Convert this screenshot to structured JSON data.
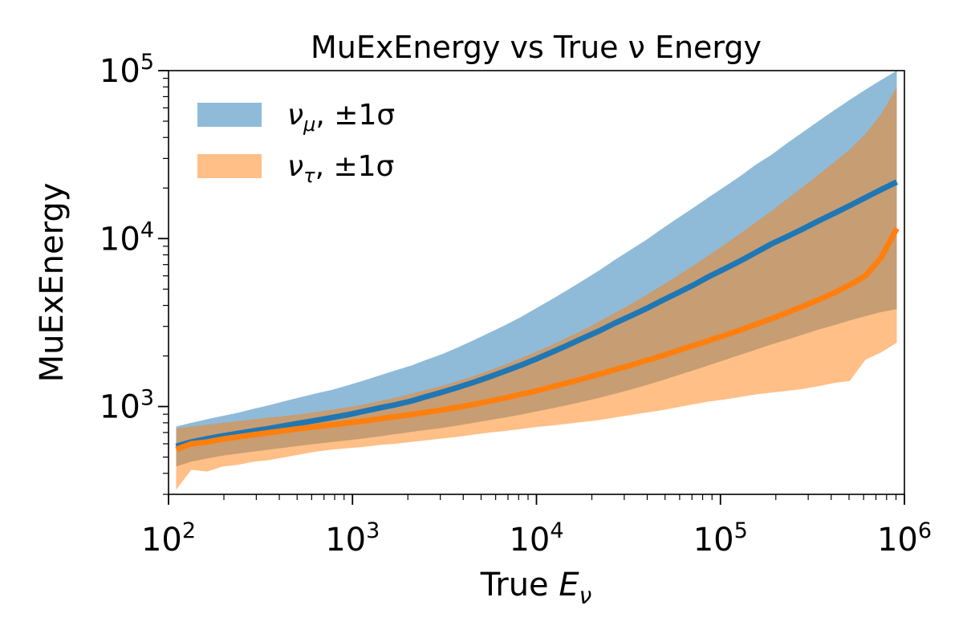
{
  "chart_data": {
    "type": "area",
    "title": "MuExEnergy vs True ν Energy",
    "xlabel": "True Eν",
    "ylabel": "MuExEnergy",
    "xscale": "log",
    "yscale": "log",
    "xlim": [
      100,
      1000000
    ],
    "ylim": [
      300,
      100000
    ],
    "x_major_ticks": [
      100,
      1000,
      10000,
      100000,
      1000000
    ],
    "x_major_tick_labels": [
      {
        "base": "10",
        "exp": "2"
      },
      {
        "base": "10",
        "exp": "3"
      },
      {
        "base": "10",
        "exp": "4"
      },
      {
        "base": "10",
        "exp": "5"
      },
      {
        "base": "10",
        "exp": "6"
      }
    ],
    "y_major_ticks": [
      1000,
      10000,
      100000
    ],
    "y_major_tick_labels": [
      {
        "base": "10",
        "exp": "3"
      },
      {
        "base": "10",
        "exp": "4"
      },
      {
        "base": "10",
        "exp": "5"
      }
    ],
    "legend_position": "top-left",
    "colors": {
      "numu_line": "#1f77b4",
      "numu_band": "#1f77b4",
      "nutau_line": "#ff7f0e",
      "nutau_band": "#ff7f0e"
    },
    "x": [
      110,
      133,
      162,
      197,
      240,
      292,
      355,
      432,
      526,
      640,
      779,
      948,
      1153,
      1403,
      1707,
      2077,
      2527,
      3075,
      3741,
      4552,
      5539,
      6739,
      8200,
      9977,
      12139,
      14770,
      17971,
      21866,
      26606,
      32372,
      39388,
      47925,
      58312,
      70950,
      86327,
      105037,
      127802,
      155502,
      189204,
      230210,
      280105,
      340813,
      414678,
      504552,
      613904,
      746957,
      908847
    ],
    "series": [
      {
        "name": "νμ, ±1σ",
        "legend": {
          "nu": "ν",
          "sub": "μ",
          "rest": ", ±1σ"
        },
        "center": [
          580,
          615,
          643,
          668,
          692,
          717,
          741,
          770,
          799,
          828,
          861,
          895,
          937,
          981,
          1024,
          1076,
          1147,
          1219,
          1300,
          1394,
          1500,
          1624,
          1759,
          1921,
          2106,
          2316,
          2558,
          2815,
          3131,
          3457,
          3822,
          4267,
          4742,
          5277,
          5931,
          6590,
          7349,
          8256,
          9287,
          10280,
          11402,
          12729,
          14130,
          15714,
          17538,
          19560,
          21712
        ],
        "upper": [
          760,
          800,
          840,
          880,
          920,
          970,
          1020,
          1080,
          1140,
          1200,
          1260,
          1340,
          1430,
          1530,
          1640,
          1750,
          1900,
          2050,
          2250,
          2480,
          2750,
          3050,
          3400,
          3850,
          4350,
          4950,
          5650,
          6450,
          7450,
          8550,
          9800,
          11400,
          13200,
          15200,
          17600,
          20300,
          23500,
          27500,
          31500,
          37000,
          43000,
          50000,
          58000,
          67000,
          77000,
          88000,
          100000
        ],
        "lower": [
          440,
          470,
          490,
          510,
          525,
          540,
          555,
          570,
          585,
          600,
          615,
          630,
          645,
          665,
          685,
          705,
          725,
          745,
          770,
          800,
          830,
          860,
          895,
          935,
          975,
          1020,
          1070,
          1125,
          1190,
          1260,
          1340,
          1430,
          1530,
          1640,
          1760,
          1890,
          2030,
          2180,
          2340,
          2500,
          2680,
          2870,
          3050,
          3250,
          3450,
          3650,
          3800
        ]
      },
      {
        "name": "ντ, ±1σ",
        "legend": {
          "nu": "ν",
          "sub": "τ",
          "rest": ", ±1σ"
        },
        "center": [
          555,
          600,
          615,
          640,
          660,
          680,
          700,
          720,
          740,
          760,
          780,
          800,
          820,
          845,
          870,
          895,
          925,
          955,
          990,
          1030,
          1075,
          1125,
          1180,
          1240,
          1310,
          1385,
          1465,
          1555,
          1655,
          1760,
          1880,
          2000,
          2150,
          2300,
          2470,
          2650,
          2850,
          3080,
          3330,
          3620,
          3950,
          4320,
          4750,
          5300,
          6000,
          7700,
          11500
        ],
        "upper": [
          740,
          760,
          780,
          800,
          820,
          840,
          860,
          880,
          900,
          930,
          960,
          990,
          1030,
          1080,
          1130,
          1190,
          1260,
          1330,
          1420,
          1520,
          1640,
          1780,
          1940,
          2120,
          2330,
          2580,
          2860,
          3200,
          3600,
          4050,
          4600,
          5250,
          6000,
          6900,
          7950,
          9200,
          10700,
          12500,
          14600,
          17200,
          20300,
          24000,
          28500,
          34000,
          42000,
          55000,
          80000
        ],
        "lower": [
          320,
          420,
          410,
          440,
          450,
          470,
          480,
          500,
          520,
          540,
          555,
          565,
          575,
          590,
          600,
          615,
          630,
          645,
          660,
          680,
          700,
          715,
          735,
          755,
          770,
          790,
          810,
          830,
          860,
          890,
          920,
          950,
          990,
          1030,
          1070,
          1100,
          1140,
          1180,
          1210,
          1240,
          1270,
          1320,
          1380,
          1420,
          1900,
          2100,
          2400
        ]
      }
    ]
  }
}
